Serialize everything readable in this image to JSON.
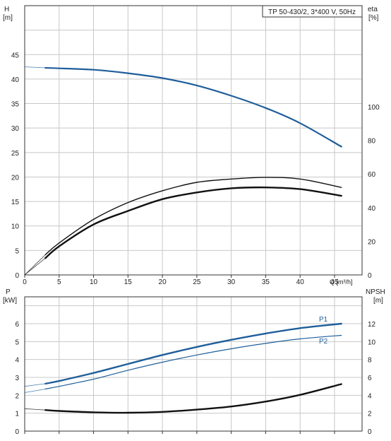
{
  "chart_data": [
    {
      "type": "line",
      "title": "TP 50-430/2, 3*400 V, 50Hz",
      "xlabel": "Q [m³/h]",
      "ylabel_left": {
        "name": "H",
        "unit": "[m]"
      },
      "ylabel_right": {
        "name": "eta",
        "unit": "[%]"
      },
      "xlim": [
        0,
        49
      ],
      "ylim_left": [
        0,
        55
      ],
      "ylim_right": [
        0,
        160
      ],
      "xticks": [
        0,
        5,
        10,
        15,
        20,
        25,
        30,
        35,
        40,
        45
      ],
      "yticks_left": [
        0,
        5,
        10,
        15,
        20,
        25,
        30,
        35,
        40,
        45
      ],
      "yticks_right": [
        0,
        20,
        40,
        60,
        80,
        100
      ],
      "grid": true,
      "series": [
        {
          "axis": "left",
          "x": [
            0,
            3,
            5,
            10,
            15,
            20,
            25,
            30,
            35,
            40,
            46
          ],
          "values": [
            42.5,
            42.3,
            42.2,
            41.9,
            41.2,
            40.2,
            38.7,
            36.6,
            34.1,
            31.0,
            26.2
          ]
        },
        {
          "axis": "right",
          "x": [
            0,
            3,
            5,
            10,
            15,
            20,
            25,
            30,
            35,
            40,
            46
          ],
          "values": [
            0,
            12,
            19,
            33,
            43,
            50,
            55,
            57,
            58,
            57,
            52
          ]
        },
        {
          "axis": "right",
          "x": [
            0,
            3,
            5,
            10,
            15,
            20,
            25,
            30,
            35,
            40,
            46
          ],
          "values": [
            0,
            10,
            17,
            30,
            38,
            45,
            49,
            51.5,
            52,
            51,
            47
          ]
        }
      ]
    },
    {
      "type": "line",
      "xlim": [
        0,
        49
      ],
      "ylabel_left": {
        "name": "P",
        "unit": "[kW]"
      },
      "ylabel_right": {
        "name": "NPSH",
        "unit": "[m]"
      },
      "ylim_left": [
        0,
        7.5
      ],
      "ylim_right": [
        0,
        15
      ],
      "yticks_left": [
        0,
        1,
        2,
        3,
        4,
        5,
        6
      ],
      "yticks_right": [
        0,
        2,
        4,
        6,
        8,
        10,
        12
      ],
      "grid": true,
      "series": [
        {
          "name": "P1",
          "axis": "left",
          "x": [
            0,
            3,
            5,
            10,
            15,
            20,
            25,
            30,
            35,
            40,
            46
          ],
          "values": [
            2.5,
            2.65,
            2.8,
            3.25,
            3.75,
            4.25,
            4.7,
            5.1,
            5.45,
            5.75,
            6.0
          ]
        },
        {
          "name": "P2",
          "axis": "left",
          "x": [
            0,
            3,
            5,
            10,
            15,
            20,
            25,
            30,
            35,
            40,
            46
          ],
          "values": [
            2.15,
            2.35,
            2.5,
            2.9,
            3.4,
            3.85,
            4.25,
            4.6,
            4.9,
            5.15,
            5.35
          ]
        },
        {
          "axis": "right",
          "x": [
            0,
            3,
            5,
            10,
            15,
            20,
            25,
            30,
            35,
            40,
            46
          ],
          "values": [
            2.5,
            2.35,
            2.25,
            2.1,
            2.05,
            2.15,
            2.4,
            2.75,
            3.3,
            4.05,
            5.25
          ]
        }
      ]
    }
  ]
}
